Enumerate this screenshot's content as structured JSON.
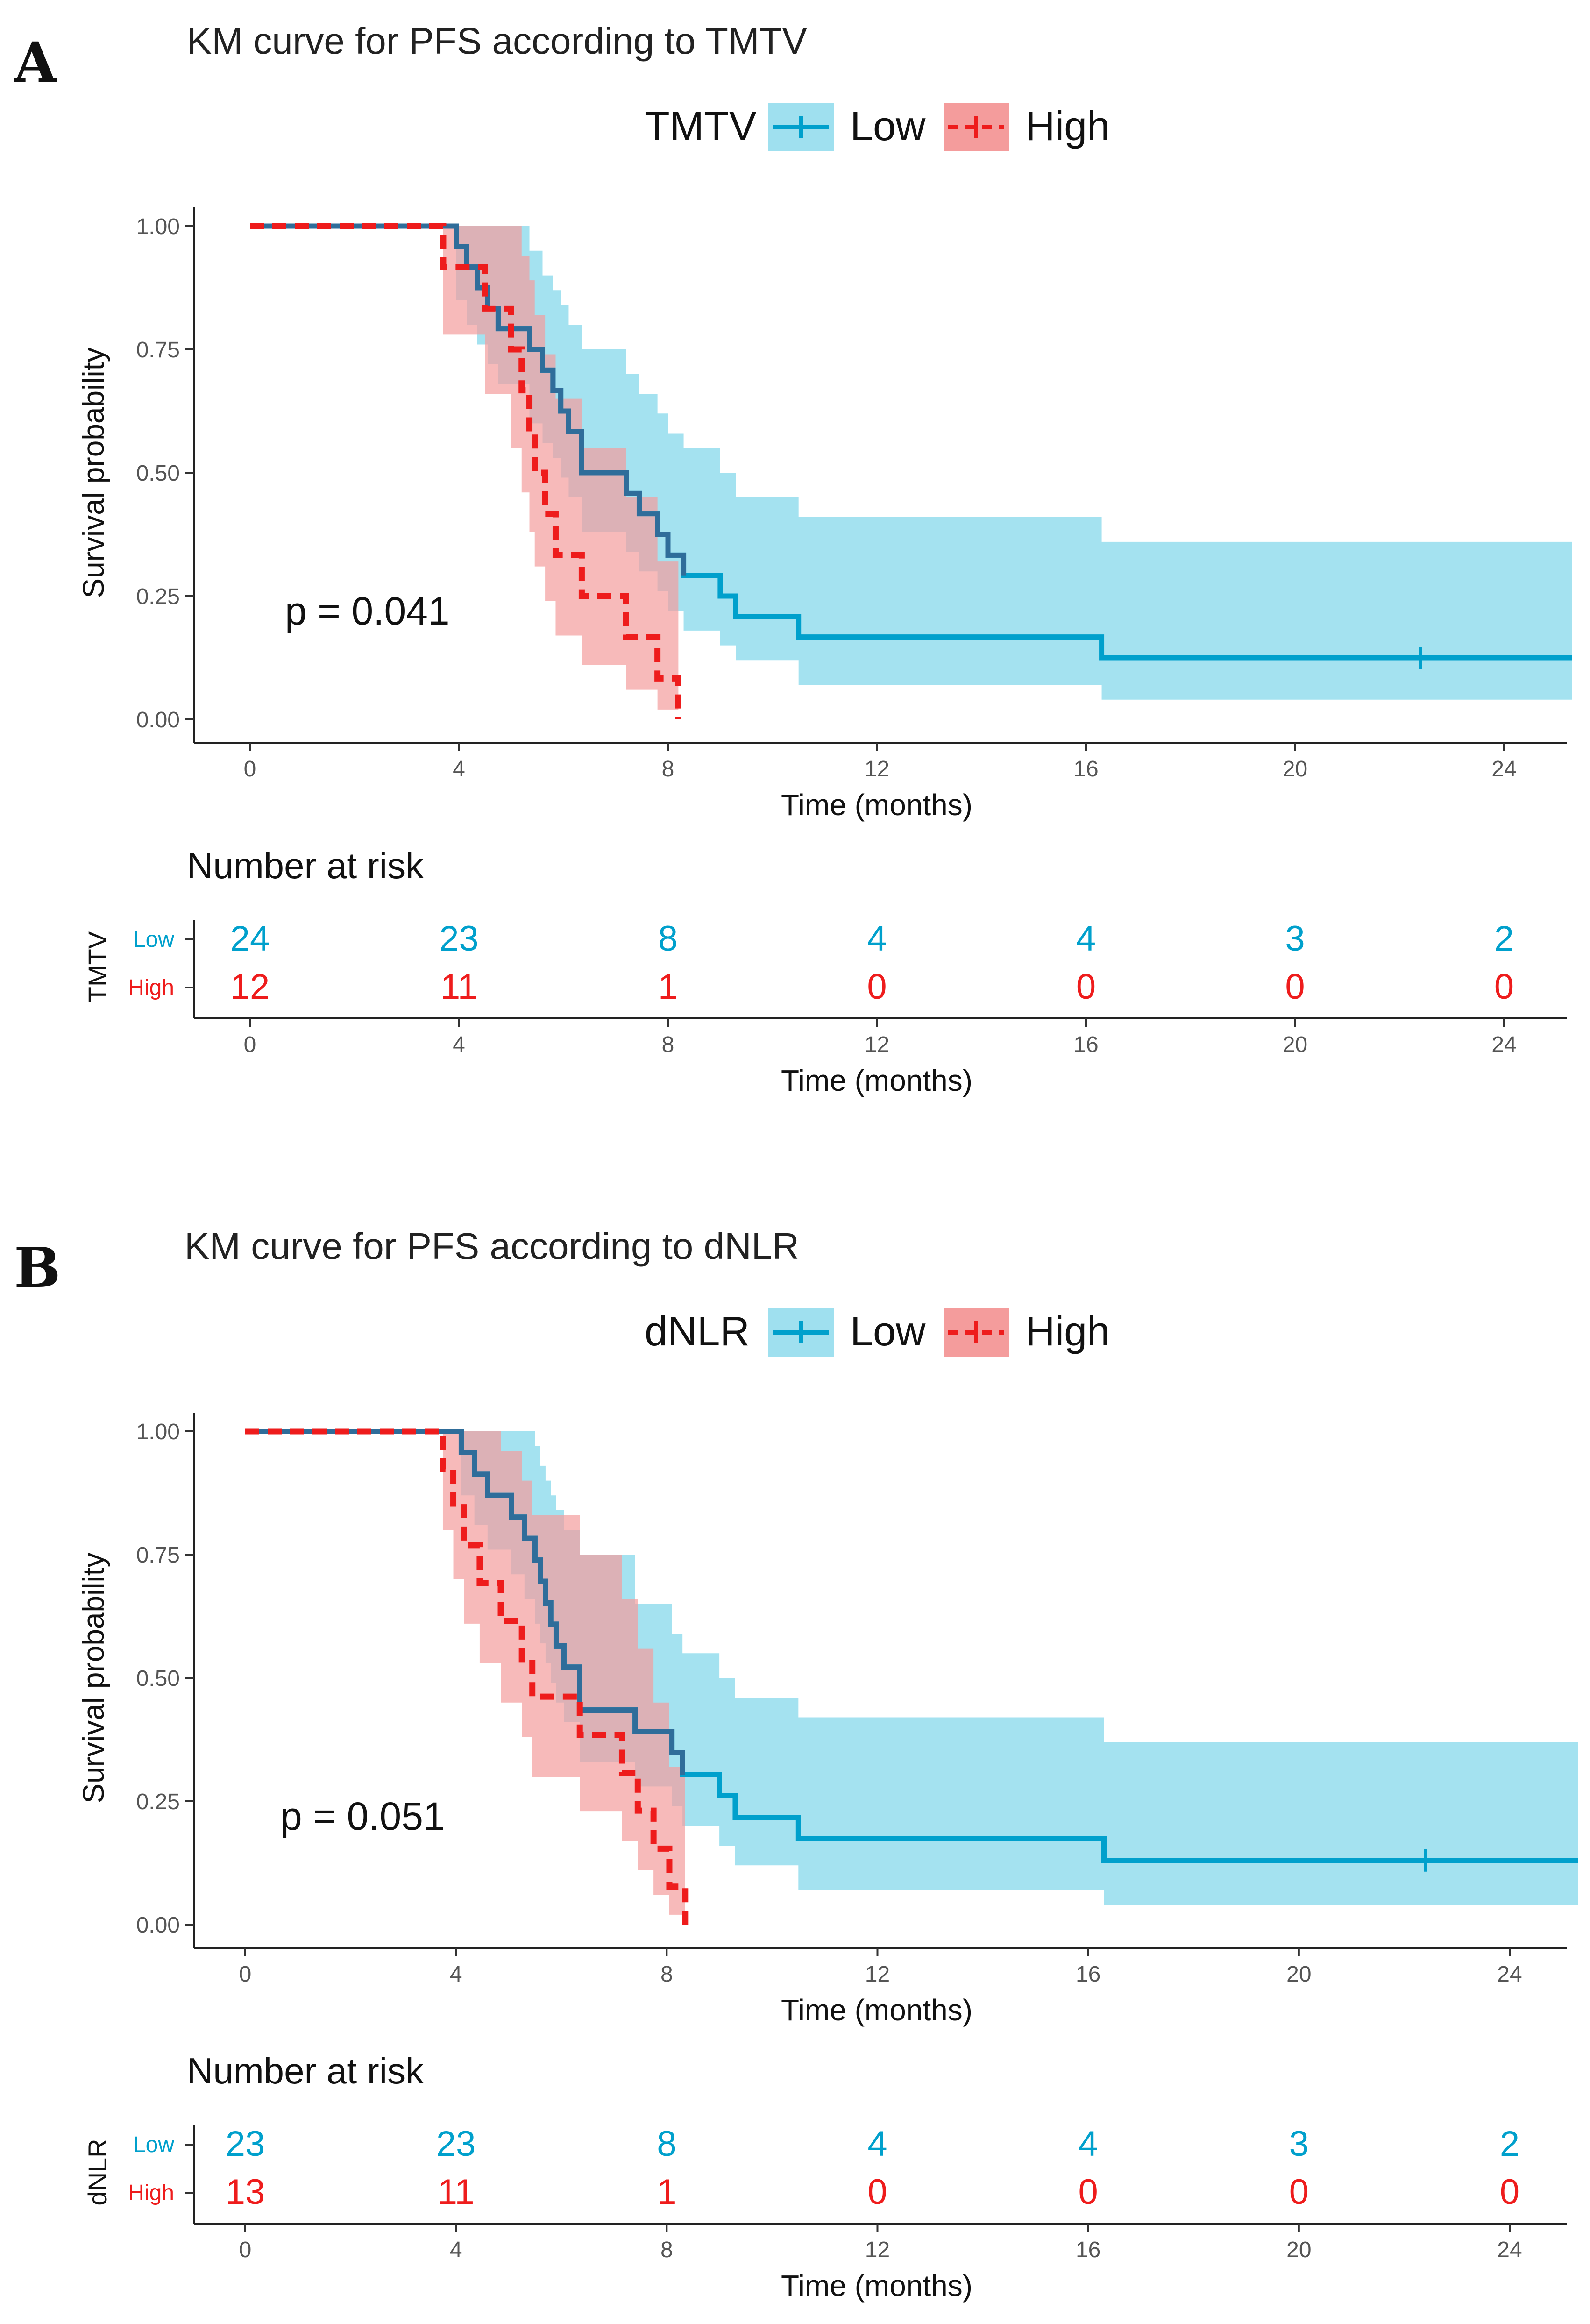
{
  "chart_data": [
    {
      "type": "line",
      "panel_letter": "A",
      "title": "KM curve for PFS according to TMTV",
      "legend_title": "TMTV",
      "xlabel": "Time (months)",
      "ylabel": "Survival probability",
      "xlim": [
        -1.5,
        25.3
      ],
      "ylim": [
        0,
        1
      ],
      "x_ticks": [
        0,
        4,
        8,
        12,
        16,
        20,
        24
      ],
      "y_ticks": [
        "0.00",
        "0.25",
        "0.50",
        "0.75",
        "1.00"
      ],
      "p_value_text": "p = 0.041",
      "colors": {
        "low": "#00a0cc",
        "low_band": "#9fe0ef",
        "high": "#ee1c1c",
        "high_band": "#f49c9c",
        "low_line": "#2f6d9a"
      },
      "series": [
        {
          "name": "Low",
          "steps": [
            [
              0,
              1.0
            ],
            [
              3.95,
              0.958
            ],
            [
              4.15,
              0.917
            ],
            [
              4.35,
              0.875
            ],
            [
              4.55,
              0.833
            ],
            [
              4.75,
              0.792
            ],
            [
              5.35,
              0.75
            ],
            [
              5.6,
              0.708
            ],
            [
              5.8,
              0.667
            ],
            [
              5.95,
              0.625
            ],
            [
              6.1,
              0.583
            ],
            [
              6.35,
              0.5
            ],
            [
              7.2,
              0.458
            ],
            [
              7.45,
              0.417
            ],
            [
              7.8,
              0.375
            ],
            [
              8.0,
              0.333
            ],
            [
              8.3,
              0.292
            ],
            [
              9.0,
              0.25
            ],
            [
              9.3,
              0.208
            ],
            [
              10.5,
              0.167
            ],
            [
              16.3,
              0.125
            ],
            [
              25.3,
              0.125
            ]
          ],
          "ci": [
            [
              0,
              1.0,
              1.0
            ],
            [
              3.95,
              0.85,
              1.0
            ],
            [
              4.15,
              0.8,
              1.0
            ],
            [
              4.35,
              0.76,
              1.0
            ],
            [
              4.55,
              0.72,
              1.0
            ],
            [
              4.75,
              0.68,
              1.0
            ],
            [
              5.35,
              0.6,
              0.95
            ],
            [
              5.6,
              0.56,
              0.9
            ],
            [
              5.8,
              0.53,
              0.87
            ],
            [
              5.95,
              0.49,
              0.84
            ],
            [
              6.1,
              0.45,
              0.8
            ],
            [
              6.35,
              0.38,
              0.75
            ],
            [
              7.2,
              0.34,
              0.7
            ],
            [
              7.45,
              0.3,
              0.66
            ],
            [
              7.8,
              0.26,
              0.62
            ],
            [
              8.0,
              0.22,
              0.58
            ],
            [
              8.3,
              0.18,
              0.55
            ],
            [
              9.0,
              0.15,
              0.5
            ],
            [
              9.3,
              0.12,
              0.45
            ],
            [
              10.5,
              0.07,
              0.41
            ],
            [
              16.3,
              0.04,
              0.36
            ],
            [
              25.3,
              0.04,
              0.36
            ]
          ],
          "censored": [
            [
              22.4,
              0.125
            ]
          ]
        },
        {
          "name": "High",
          "steps": [
            [
              0,
              1.0
            ],
            [
              3.7,
              0.917
            ],
            [
              4.5,
              0.833
            ],
            [
              5.0,
              0.75
            ],
            [
              5.2,
              0.667
            ],
            [
              5.35,
              0.583
            ],
            [
              5.45,
              0.5
            ],
            [
              5.65,
              0.417
            ],
            [
              5.85,
              0.333
            ],
            [
              6.35,
              0.25
            ],
            [
              7.2,
              0.167
            ],
            [
              7.8,
              0.083
            ],
            [
              8.2,
              0.0
            ]
          ],
          "ci": [
            [
              0,
              1.0,
              1.0
            ],
            [
              3.7,
              0.78,
              1.0
            ],
            [
              4.5,
              0.66,
              1.0
            ],
            [
              5.0,
              0.55,
              1.0
            ],
            [
              5.2,
              0.46,
              0.94
            ],
            [
              5.35,
              0.38,
              0.89
            ],
            [
              5.45,
              0.31,
              0.82
            ],
            [
              5.65,
              0.24,
              0.74
            ],
            [
              5.85,
              0.17,
              0.65
            ],
            [
              6.35,
              0.11,
              0.55
            ],
            [
              7.2,
              0.06,
              0.45
            ],
            [
              7.8,
              0.02,
              0.32
            ],
            [
              8.2,
              0.0,
              0.0
            ]
          ],
          "censored": []
        }
      ],
      "risk_table": {
        "title": "Number at risk",
        "variable": "TMTV",
        "times": [
          0,
          4,
          8,
          12,
          16,
          20,
          24
        ],
        "rows": [
          {
            "label": "Low",
            "values": [
              "24",
              "23",
              "8",
              "4",
              "4",
              "3",
              "2"
            ]
          },
          {
            "label": "High",
            "values": [
              "12",
              "11",
              "1",
              "0",
              "0",
              "0",
              "0"
            ]
          }
        ],
        "xlabel": "Time (months)"
      }
    },
    {
      "type": "line",
      "panel_letter": "B",
      "title": "KM curve for PFS according to dNLR",
      "legend_title": "dNLR",
      "xlabel": "Time (months)",
      "ylabel": "Survival probability",
      "xlim": [
        -1.5,
        25.3
      ],
      "ylim": [
        0,
        1
      ],
      "x_ticks": [
        0,
        4,
        8,
        12,
        16,
        20,
        24
      ],
      "y_ticks": [
        "0.00",
        "0.25",
        "0.50",
        "0.75",
        "1.00"
      ],
      "p_value_text": "p = 0.051",
      "colors": {
        "low": "#00a0cc",
        "low_band": "#9fe0ef",
        "high": "#ee1c1c",
        "high_band": "#f49c9c",
        "low_line": "#2f6d9a"
      },
      "series": [
        {
          "name": "Low",
          "steps": [
            [
              0,
              1.0
            ],
            [
              4.1,
              0.957
            ],
            [
              4.35,
              0.913
            ],
            [
              4.6,
              0.87
            ],
            [
              5.05,
              0.826
            ],
            [
              5.3,
              0.783
            ],
            [
              5.5,
              0.739
            ],
            [
              5.6,
              0.696
            ],
            [
              5.7,
              0.652
            ],
            [
              5.8,
              0.609
            ],
            [
              5.9,
              0.565
            ],
            [
              6.05,
              0.522
            ],
            [
              6.35,
              0.435
            ],
            [
              7.4,
              0.391
            ],
            [
              8.1,
              0.348
            ],
            [
              8.3,
              0.304
            ],
            [
              9.0,
              0.261
            ],
            [
              9.3,
              0.217
            ],
            [
              10.5,
              0.174
            ],
            [
              16.3,
              0.13
            ],
            [
              25.3,
              0.13
            ]
          ],
          "ci": [
            [
              0,
              1.0,
              1.0
            ],
            [
              4.1,
              0.87,
              1.0
            ],
            [
              4.35,
              0.81,
              1.0
            ],
            [
              4.6,
              0.76,
              1.0
            ],
            [
              5.05,
              0.71,
              1.0
            ],
            [
              5.3,
              0.66,
              1.0
            ],
            [
              5.5,
              0.61,
              0.97
            ],
            [
              5.6,
              0.57,
              0.93
            ],
            [
              5.7,
              0.53,
              0.9
            ],
            [
              5.8,
              0.49,
              0.87
            ],
            [
              5.9,
              0.45,
              0.84
            ],
            [
              6.05,
              0.41,
              0.8
            ],
            [
              6.35,
              0.33,
              0.75
            ],
            [
              7.4,
              0.28,
              0.65
            ],
            [
              8.1,
              0.24,
              0.59
            ],
            [
              8.3,
              0.2,
              0.55
            ],
            [
              9.0,
              0.16,
              0.5
            ],
            [
              9.3,
              0.12,
              0.46
            ],
            [
              10.5,
              0.07,
              0.42
            ],
            [
              16.3,
              0.04,
              0.37
            ],
            [
              25.3,
              0.04,
              0.37
            ]
          ],
          "censored": [
            [
              22.4,
              0.13
            ]
          ]
        },
        {
          "name": "High",
          "steps": [
            [
              0,
              1.0
            ],
            [
              3.75,
              0.923
            ],
            [
              3.95,
              0.846
            ],
            [
              4.15,
              0.769
            ],
            [
              4.45,
              0.692
            ],
            [
              4.85,
              0.615
            ],
            [
              5.25,
              0.538
            ],
            [
              5.45,
              0.462
            ],
            [
              6.35,
              0.385
            ],
            [
              7.15,
              0.308
            ],
            [
              7.45,
              0.231
            ],
            [
              7.75,
              0.154
            ],
            [
              8.05,
              0.077
            ],
            [
              8.35,
              0.0
            ]
          ],
          "ci": [
            [
              0,
              1.0,
              1.0
            ],
            [
              3.75,
              0.8,
              1.0
            ],
            [
              3.95,
              0.7,
              1.0
            ],
            [
              4.15,
              0.61,
              1.0
            ],
            [
              4.45,
              0.53,
              1.0
            ],
            [
              4.85,
              0.45,
              0.96
            ],
            [
              5.25,
              0.38,
              0.9
            ],
            [
              5.45,
              0.3,
              0.83
            ],
            [
              6.35,
              0.23,
              0.75
            ],
            [
              7.15,
              0.17,
              0.66
            ],
            [
              7.45,
              0.11,
              0.56
            ],
            [
              7.75,
              0.06,
              0.45
            ],
            [
              8.05,
              0.02,
              0.32
            ],
            [
              8.35,
              0.0,
              0.0
            ]
          ],
          "censored": []
        }
      ],
      "risk_table": {
        "title": "Number at risk",
        "variable": "dNLR",
        "times": [
          0,
          4,
          8,
          12,
          16,
          20,
          24
        ],
        "rows": [
          {
            "label": "Low",
            "values": [
              "23",
              "23",
              "8",
              "4",
              "4",
              "3",
              "2"
            ]
          },
          {
            "label": "High",
            "values": [
              "13",
              "11",
              "1",
              "0",
              "0",
              "0",
              "0"
            ]
          }
        ],
        "xlabel": "Time (months)"
      }
    }
  ]
}
